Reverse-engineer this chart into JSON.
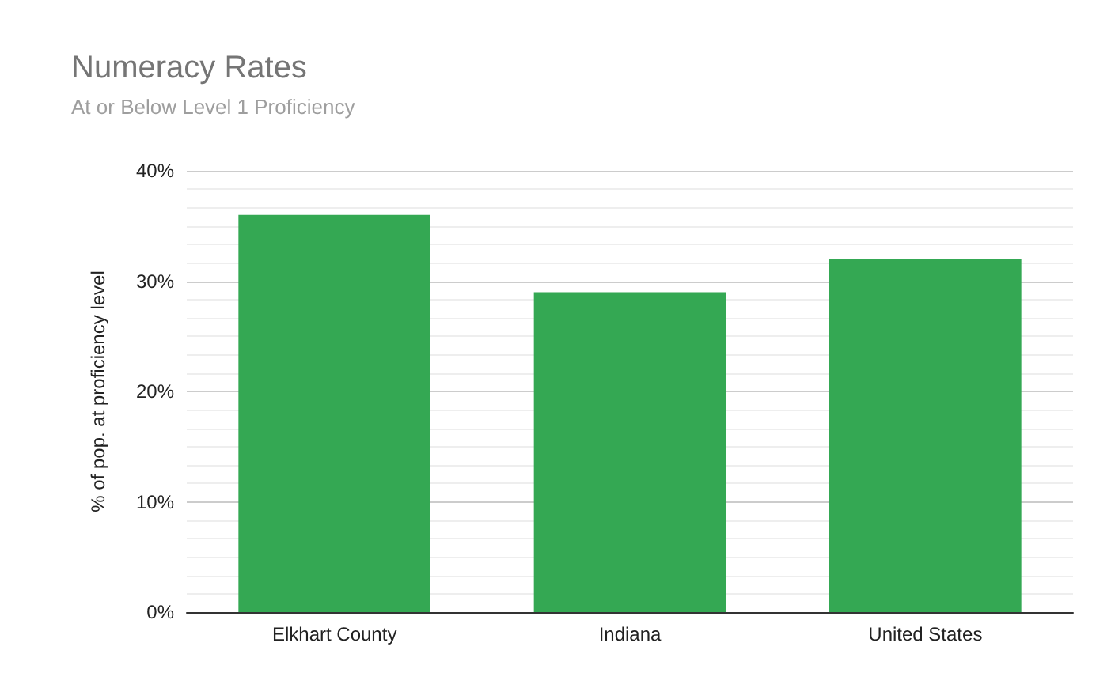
{
  "chart_data": {
    "type": "bar",
    "title": "Numeracy Rates",
    "subtitle": "At or Below Level 1 Proficiency",
    "ylabel": "% of pop. at proficiency level",
    "categories": [
      "Elkhart County",
      "Indiana",
      "United States"
    ],
    "values": [
      36,
      29,
      32
    ],
    "color": "#34a853",
    "ylim": [
      0,
      40
    ],
    "yticks": [
      {
        "value": 0,
        "label": "0%"
      },
      {
        "value": 10,
        "label": "10%"
      },
      {
        "value": 20,
        "label": "20%"
      },
      {
        "value": 30,
        "label": "30%"
      },
      {
        "value": 40,
        "label": "40%"
      }
    ],
    "grid": "y"
  }
}
